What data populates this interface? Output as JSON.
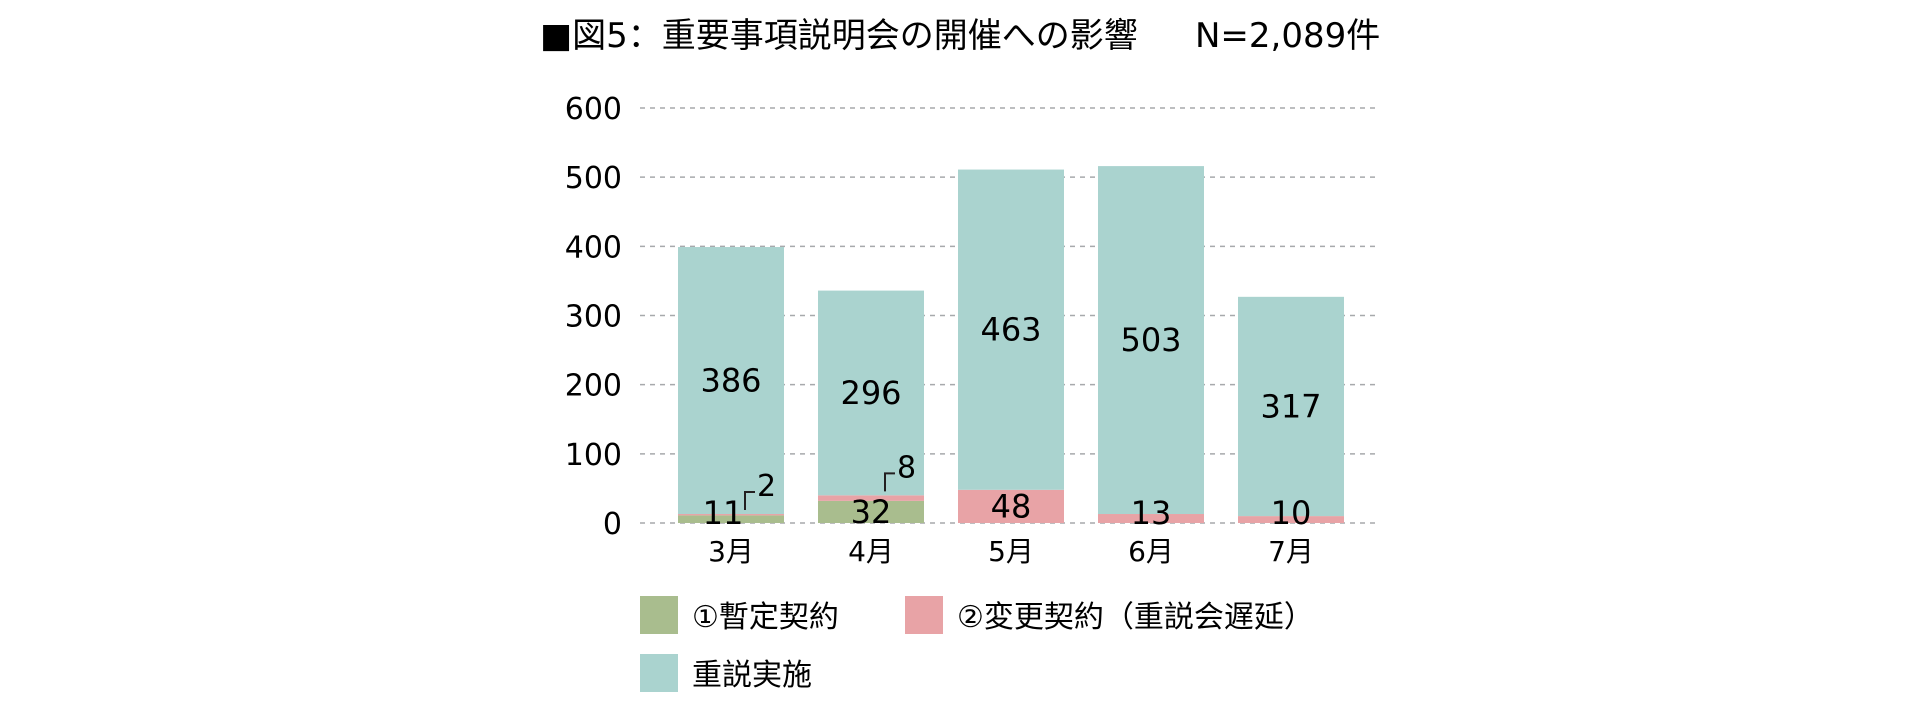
{
  "chart_data": {
    "type": "bar",
    "stacked": true,
    "title": "■図5：重要事項説明会の開催への影響",
    "note": "N=2,089件",
    "categories": [
      "3月",
      "4月",
      "5月",
      "6月",
      "7月"
    ],
    "series": [
      {
        "name": "①暫定契約",
        "color": "#a9bd8e",
        "values": [
          11,
          32,
          0,
          0,
          0
        ]
      },
      {
        "name": "②変更契約（重説会遅延）",
        "color": "#e8a3a6",
        "values": [
          2,
          8,
          48,
          13,
          10
        ]
      },
      {
        "name": "重説実施",
        "color": "#aad3cf",
        "values": [
          386,
          296,
          463,
          503,
          317
        ]
      }
    ],
    "data_labels": [
      {
        "category": "3月",
        "series": "①暫定契約",
        "text": "11"
      },
      {
        "category": "3月",
        "series": "②変更契約（重説会遅延）",
        "text": "2",
        "callout": true
      },
      {
        "category": "3月",
        "series": "重説実施",
        "text": "386"
      },
      {
        "category": "4月",
        "series": "①暫定契約",
        "text": "32"
      },
      {
        "category": "4月",
        "series": "②変更契約（重説会遅延）",
        "text": "8",
        "callout": true
      },
      {
        "category": "4月",
        "series": "重説実施",
        "text": "296"
      },
      {
        "category": "5月",
        "series": "②変更契約（重説会遅延）",
        "text": "48"
      },
      {
        "category": "5月",
        "series": "重説実施",
        "text": "463"
      },
      {
        "category": "6月",
        "series": "②変更契約（重説会遅延）",
        "text": "13"
      },
      {
        "category": "6月",
        "series": "重説実施",
        "text": "503"
      },
      {
        "category": "7月",
        "series": "②変更契約（重説会遅延）",
        "text": "10"
      },
      {
        "category": "7月",
        "series": "重説実施",
        "text": "317"
      }
    ],
    "y_ticks": [
      "0",
      "100",
      "200",
      "300",
      "400",
      "500",
      "600"
    ],
    "ylim": [
      0,
      600
    ],
    "grid": true,
    "legend_position": "bottom",
    "xlabel": "",
    "ylabel": ""
  }
}
